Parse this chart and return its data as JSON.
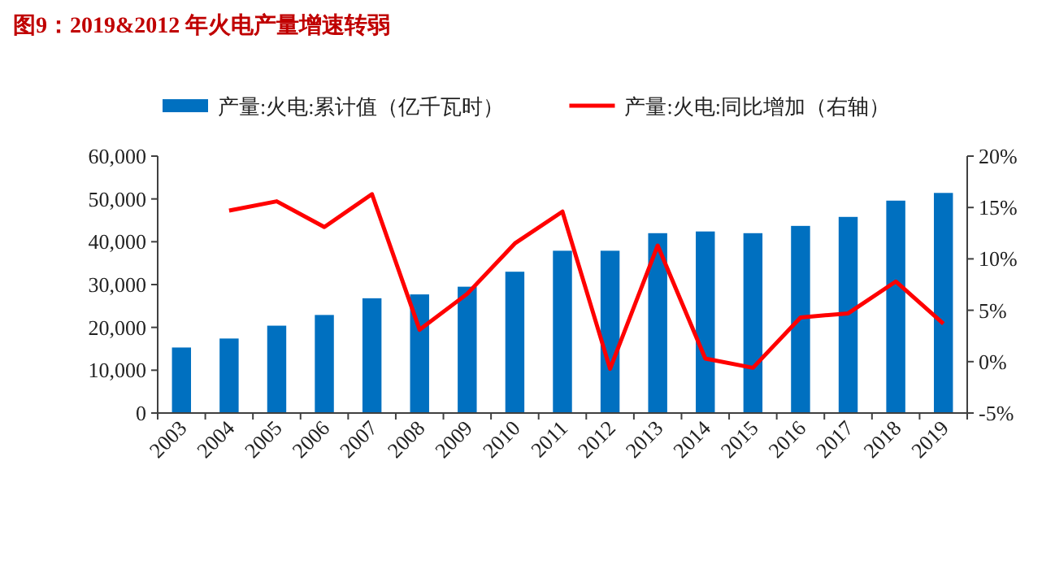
{
  "chart_data": {
    "type": "bar",
    "title": "图9：2019&2012 年火电产量增速转弱",
    "categories": [
      "2003",
      "2004",
      "2005",
      "2006",
      "2007",
      "2008",
      "2009",
      "2010",
      "2011",
      "2012",
      "2013",
      "2014",
      "2015",
      "2016",
      "2017",
      "2018",
      "2019"
    ],
    "series": [
      {
        "name": "产量:火电:累计值（亿千瓦时）",
        "color": "#0070c0",
        "values": [
          15300,
          17400,
          20400,
          22900,
          26800,
          27700,
          29500,
          33000,
          37900,
          37900,
          42000,
          42400,
          42000,
          43700,
          45800,
          49600,
          51400
        ]
      },
      {
        "name": "产量:火电:同比增加（右轴）",
        "type": "line",
        "axis": "y2",
        "color": "#ff0000",
        "values": [
          null,
          14.7,
          15.6,
          13.1,
          16.3,
          3.1,
          6.6,
          11.5,
          14.6,
          -0.7,
          11.3,
          0.3,
          -0.6,
          4.3,
          4.7,
          7.8,
          3.7
        ]
      }
    ],
    "ylim": [
      0,
      60000
    ],
    "yticks": [
      0,
      {
        "value": 10000,
        "label": "10,000"
      },
      {
        "value": 20000,
        "label": "20,000"
      },
      {
        "value": 30000,
        "label": "30,000"
      },
      {
        "value": 40000,
        "label": "40,000"
      },
      {
        "value": 50000,
        "label": "50,000"
      },
      {
        "value": 60000,
        "label": "60,000"
      }
    ],
    "y2lim": [
      -5,
      20
    ],
    "y2ticks": [
      {
        "value": -5,
        "label": "-5%"
      },
      {
        "value": 0,
        "label": "0%"
      },
      {
        "value": 5,
        "label": "5%"
      },
      {
        "value": 10,
        "label": "10%"
      },
      {
        "value": 15,
        "label": "15%"
      },
      {
        "value": 20,
        "label": "20%"
      }
    ],
    "legend": "top",
    "grid": false
  }
}
